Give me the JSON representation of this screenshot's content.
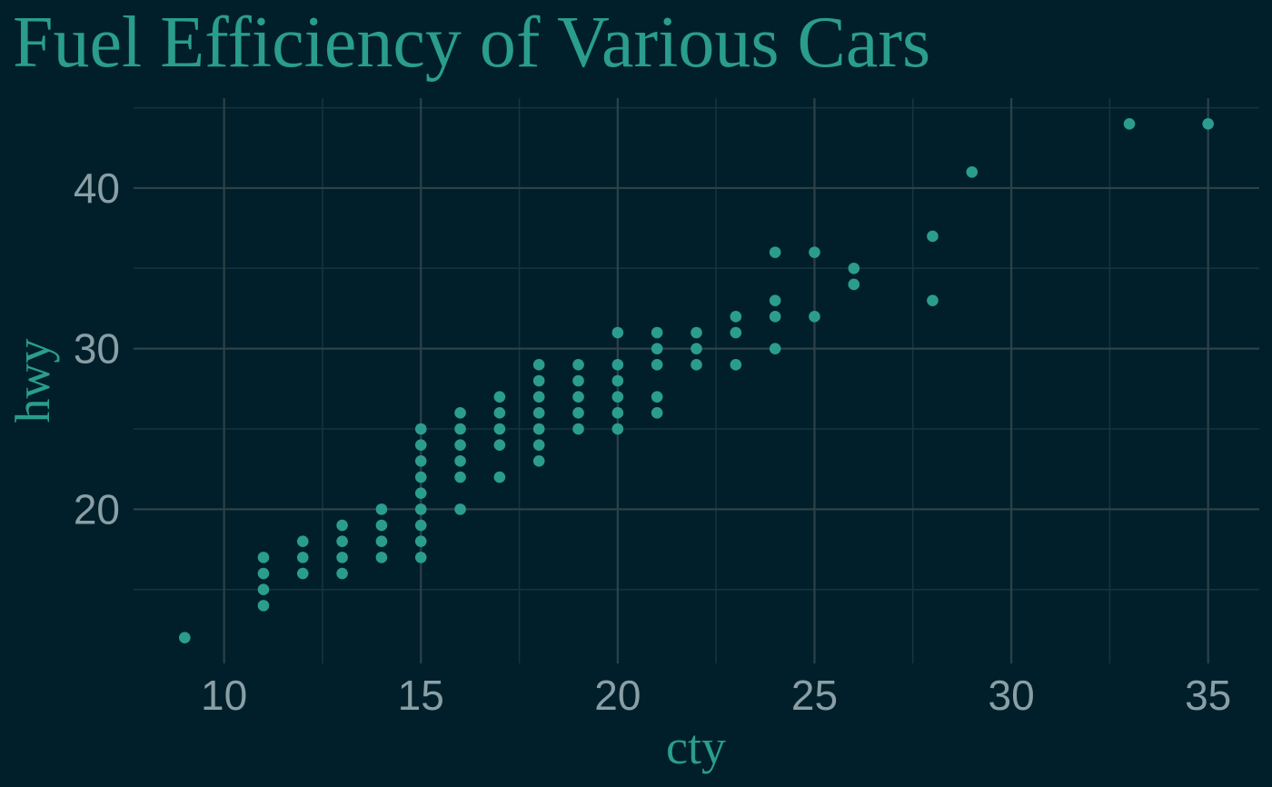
{
  "chart_data": {
    "type": "scatter",
    "title": "Fuel Efficiency of Various Cars",
    "xlabel": "cty",
    "ylabel": "hwy",
    "xlim": [
      7.7,
      36.3
    ],
    "ylim": [
      10.4,
      45.6
    ],
    "x_ticks": [
      10,
      15,
      20,
      25,
      30,
      35
    ],
    "x_tick_labels": [
      "10",
      "15",
      "20",
      "25",
      "30",
      "35"
    ],
    "y_ticks": [
      20,
      30,
      40
    ],
    "y_tick_labels": [
      "20",
      "30",
      "40"
    ],
    "x_minor_ticks": [
      12.5,
      17.5,
      22.5,
      27.5,
      32.5
    ],
    "y_minor_ticks": [
      15,
      25,
      35,
      45
    ],
    "grid": true,
    "legend": "none",
    "colors": {
      "background": "#011f2b",
      "point": "#2a9d8f",
      "title": "#2a9d8f",
      "tick_label": "#8a9fa5",
      "grid_major": "#2c4248",
      "grid_minor": "#16343f"
    },
    "points": [
      {
        "x": 9,
        "y": 12
      },
      {
        "x": 11,
        "y": 14
      },
      {
        "x": 11,
        "y": 15
      },
      {
        "x": 11,
        "y": 16
      },
      {
        "x": 11,
        "y": 17
      },
      {
        "x": 12,
        "y": 16
      },
      {
        "x": 12,
        "y": 17
      },
      {
        "x": 12,
        "y": 18
      },
      {
        "x": 13,
        "y": 16
      },
      {
        "x": 13,
        "y": 17
      },
      {
        "x": 13,
        "y": 18
      },
      {
        "x": 13,
        "y": 19
      },
      {
        "x": 14,
        "y": 17
      },
      {
        "x": 14,
        "y": 18
      },
      {
        "x": 14,
        "y": 19
      },
      {
        "x": 14,
        "y": 20
      },
      {
        "x": 15,
        "y": 17
      },
      {
        "x": 15,
        "y": 18
      },
      {
        "x": 15,
        "y": 19
      },
      {
        "x": 15,
        "y": 20
      },
      {
        "x": 15,
        "y": 21
      },
      {
        "x": 15,
        "y": 22
      },
      {
        "x": 15,
        "y": 23
      },
      {
        "x": 15,
        "y": 24
      },
      {
        "x": 15,
        "y": 25
      },
      {
        "x": 16,
        "y": 20
      },
      {
        "x": 16,
        "y": 22
      },
      {
        "x": 16,
        "y": 23
      },
      {
        "x": 16,
        "y": 24
      },
      {
        "x": 16,
        "y": 25
      },
      {
        "x": 16,
        "y": 26
      },
      {
        "x": 17,
        "y": 22
      },
      {
        "x": 17,
        "y": 24
      },
      {
        "x": 17,
        "y": 25
      },
      {
        "x": 17,
        "y": 26
      },
      {
        "x": 17,
        "y": 27
      },
      {
        "x": 18,
        "y": 23
      },
      {
        "x": 18,
        "y": 24
      },
      {
        "x": 18,
        "y": 25
      },
      {
        "x": 18,
        "y": 26
      },
      {
        "x": 18,
        "y": 27
      },
      {
        "x": 18,
        "y": 28
      },
      {
        "x": 18,
        "y": 29
      },
      {
        "x": 19,
        "y": 25
      },
      {
        "x": 19,
        "y": 26
      },
      {
        "x": 19,
        "y": 27
      },
      {
        "x": 19,
        "y": 28
      },
      {
        "x": 19,
        "y": 29
      },
      {
        "x": 20,
        "y": 25
      },
      {
        "x": 20,
        "y": 26
      },
      {
        "x": 20,
        "y": 27
      },
      {
        "x": 20,
        "y": 28
      },
      {
        "x": 20,
        "y": 29
      },
      {
        "x": 20,
        "y": 31
      },
      {
        "x": 21,
        "y": 26
      },
      {
        "x": 21,
        "y": 27
      },
      {
        "x": 21,
        "y": 29
      },
      {
        "x": 21,
        "y": 30
      },
      {
        "x": 21,
        "y": 31
      },
      {
        "x": 22,
        "y": 29
      },
      {
        "x": 22,
        "y": 30
      },
      {
        "x": 22,
        "y": 31
      },
      {
        "x": 23,
        "y": 29
      },
      {
        "x": 23,
        "y": 31
      },
      {
        "x": 23,
        "y": 32
      },
      {
        "x": 24,
        "y": 30
      },
      {
        "x": 24,
        "y": 32
      },
      {
        "x": 24,
        "y": 33
      },
      {
        "x": 24,
        "y": 36
      },
      {
        "x": 25,
        "y": 32
      },
      {
        "x": 25,
        "y": 36
      },
      {
        "x": 26,
        "y": 34
      },
      {
        "x": 26,
        "y": 35
      },
      {
        "x": 28,
        "y": 33
      },
      {
        "x": 28,
        "y": 37
      },
      {
        "x": 29,
        "y": 41
      },
      {
        "x": 33,
        "y": 44
      },
      {
        "x": 35,
        "y": 44
      }
    ]
  }
}
